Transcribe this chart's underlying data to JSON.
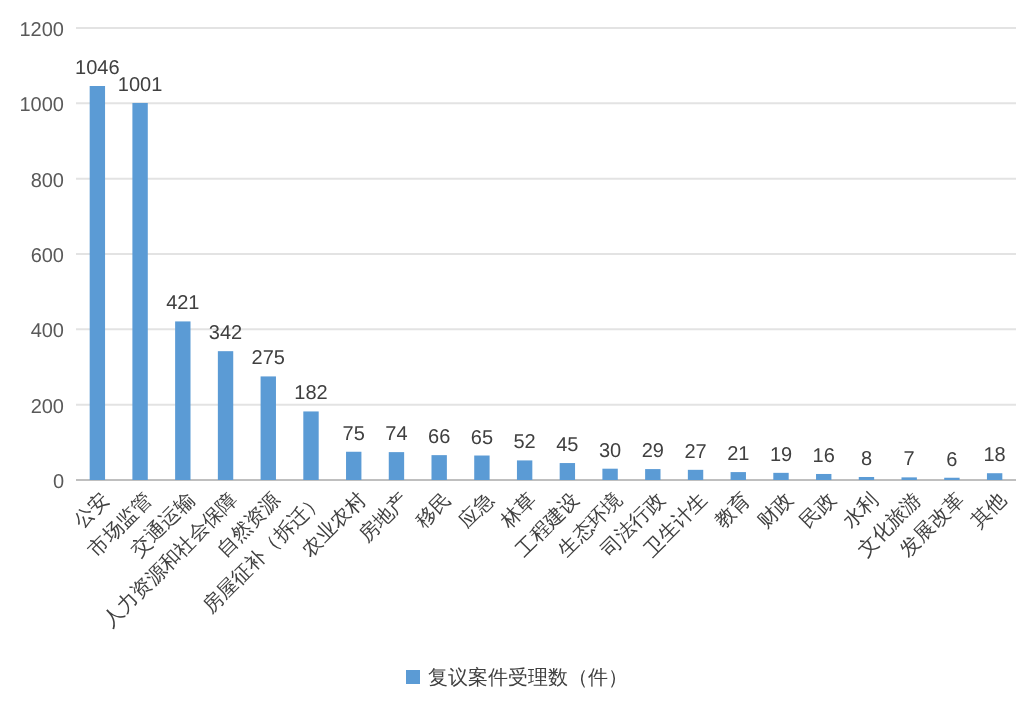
{
  "chart_data": {
    "type": "bar",
    "categories": [
      "公安",
      "市场监管",
      "交通运输",
      "人力资源和社会保障",
      "自然资源",
      "房屋征补（拆迁）",
      "农业农村",
      "房地产",
      "移民",
      "应急",
      "林草",
      "工程建设",
      "生态环境",
      "司法行政",
      "卫生计生",
      "教育",
      "财政",
      "民政",
      "水利",
      "文化旅游",
      "发展改革",
      "其他"
    ],
    "series": [
      {
        "name": "复议案件受理数（件）",
        "color": "#5b9bd5",
        "values": [
          1046,
          1001,
          421,
          342,
          275,
          182,
          75,
          74,
          66,
          65,
          52,
          45,
          30,
          29,
          27,
          21,
          19,
          16,
          8,
          7,
          6,
          18
        ]
      }
    ],
    "ylim": [
      0,
      1200
    ],
    "yticks": [
      0,
      200,
      400,
      600,
      800,
      1000,
      1200
    ],
    "grid": "y",
    "legend": "bottom",
    "data_labels": true
  }
}
